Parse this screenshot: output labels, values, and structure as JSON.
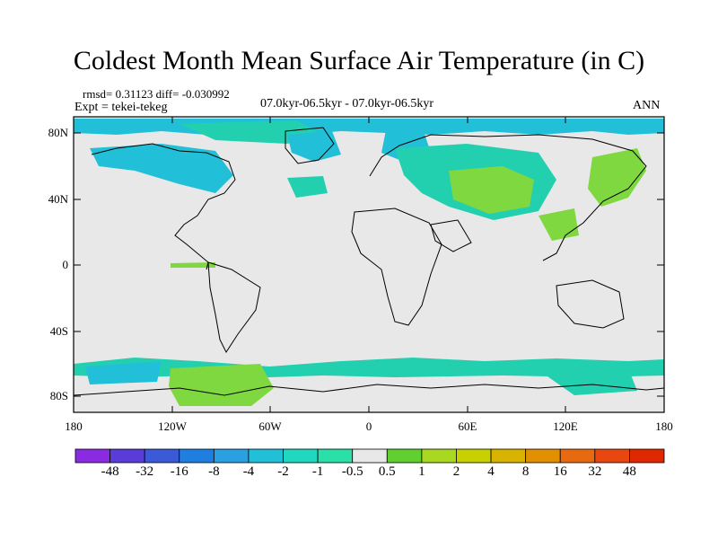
{
  "title": "Coldest Month Mean Surface Air Temperature (in C)",
  "stats": "rmsd= 0.31123 diff= -0.030992",
  "experiment": "Expt = tekei-tekeg",
  "comparison": "07.0kyr-06.5kyr - 07.0kyr-06.5kyr",
  "period": "ANN",
  "colors": {
    "land_bg": "#e8e8e8",
    "coast": "#000000",
    "teal": "#22d0b0",
    "cyan": "#22c0d8",
    "lightgreen": "#80d840",
    "green": "#60c020"
  },
  "lat_ticks": [
    "80N",
    "40N",
    "0",
    "40S",
    "80S"
  ],
  "lon_ticks": [
    "180",
    "120W",
    "60W",
    "0",
    "60E",
    "120E",
    "180"
  ],
  "colorbar": {
    "labels": [
      "-48",
      "-32",
      "-16",
      "-8",
      "-4",
      "-2",
      "-1",
      "-0.5",
      "0.5",
      "1",
      "2",
      "4",
      "8",
      "16",
      "32",
      "48"
    ],
    "colors": [
      "#8a2be2",
      "#5a3cd8",
      "#3a5ad8",
      "#1e7fe0",
      "#2aa0e0",
      "#22c0d8",
      "#20d8c0",
      "#2ae0a8",
      "#e8e8e8",
      "#60d030",
      "#a8d820",
      "#c8d000",
      "#d8b400",
      "#e09000",
      "#e86a10",
      "#e84810",
      "#e02800"
    ]
  }
}
